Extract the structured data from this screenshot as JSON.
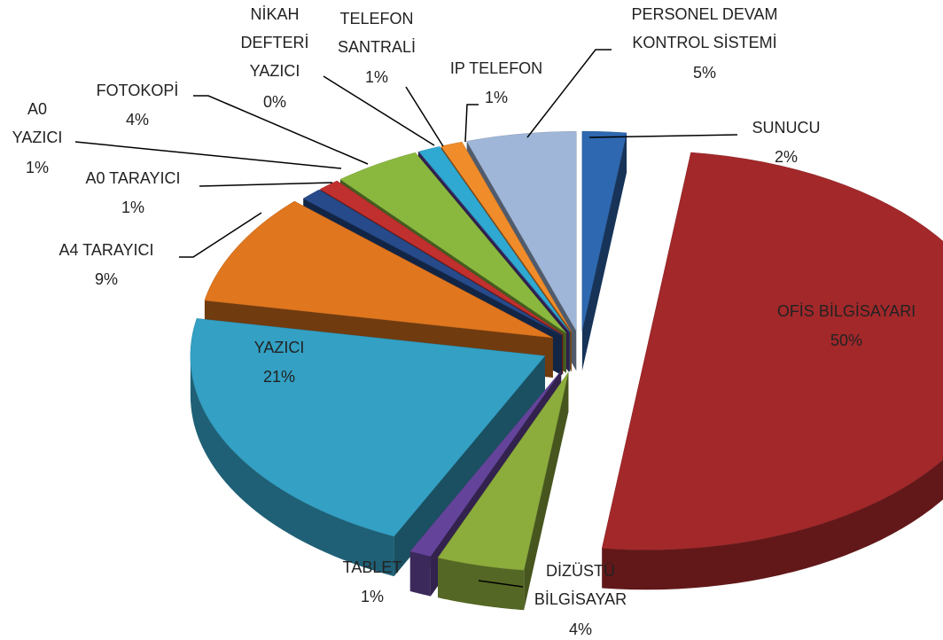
{
  "chart_data": {
    "type": "pie",
    "categories": [
      "SUNUCU",
      "OFİS BİLGİSAYARI",
      "DİZÜSTÜ\nBİLGİSAYAR",
      "TABLET",
      "YAZICI",
      "A4 TARAYICI",
      "A0 TARAYICI",
      "A0\nYAZICI",
      "FOTOKOPİ",
      "NİKAH\nDEFTERİ\nYAZICI",
      "TELEFON\nSANTRALİ",
      "IP TELEFON",
      "PERSONEL DEVAM\nKONTROL SİSTEMİ"
    ],
    "values": [
      2,
      50,
      4,
      1,
      21,
      9,
      1,
      1,
      4,
      0,
      1,
      1,
      5
    ],
    "value_labels": [
      "2%",
      "50%",
      "4%",
      "1%",
      "21%",
      "9%",
      "1%",
      "1%",
      "4%",
      "0%",
      "1%",
      "1%",
      "5%"
    ],
    "colors": [
      "#2e68b0",
      "#a3282a",
      "#8cac3c",
      "#64449a",
      "#33a0c4",
      "#e0761e",
      "#264a8a",
      "#c0302e",
      "#8ab83e",
      "#5c3e98",
      "#2fa8d2",
      "#f08c2a",
      "#9fb6d8"
    ]
  }
}
